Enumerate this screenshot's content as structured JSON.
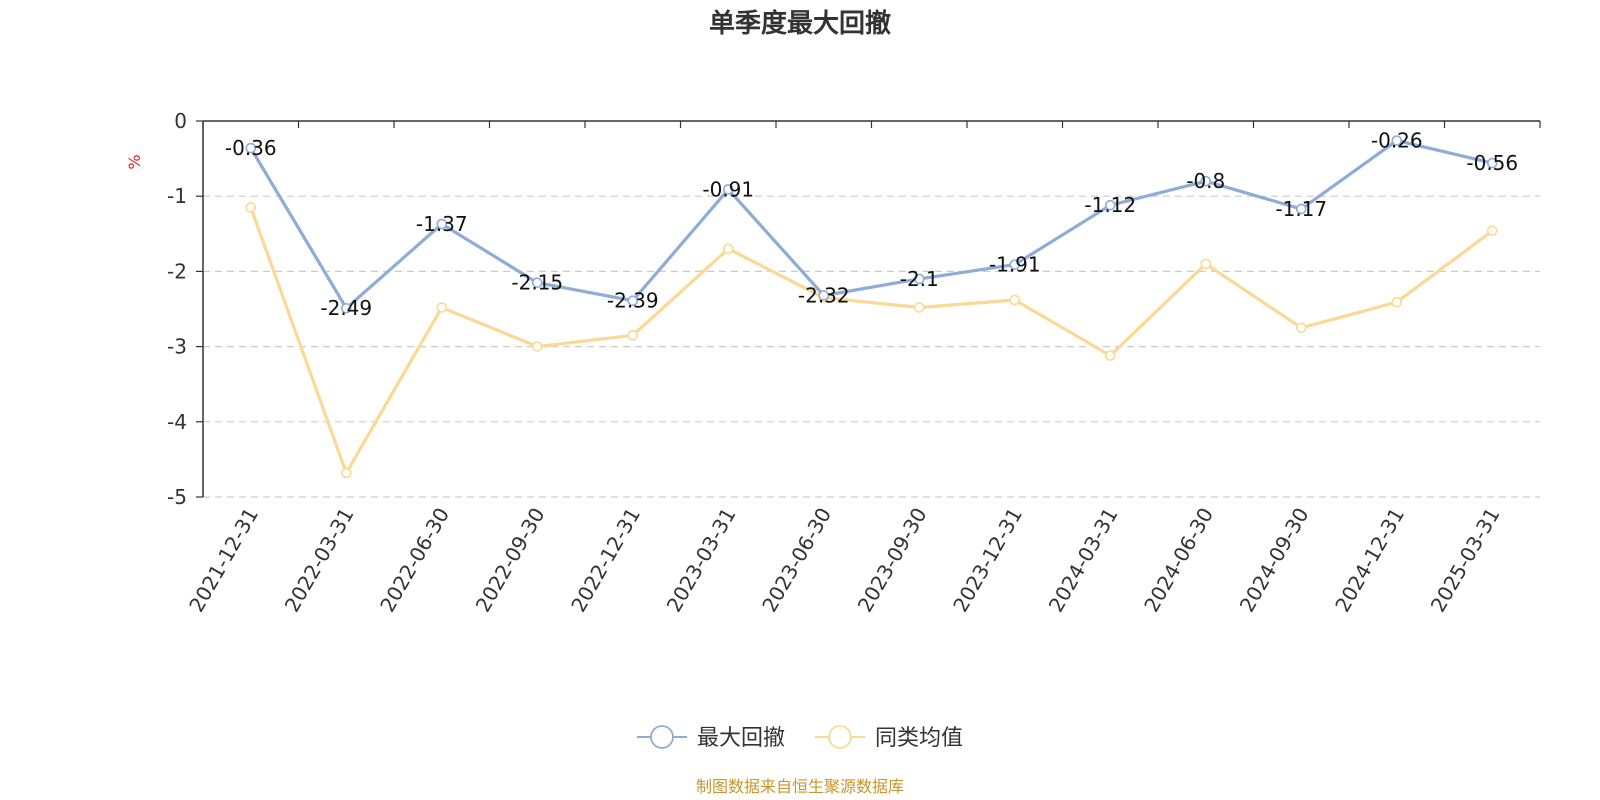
{
  "chart_data": {
    "type": "line",
    "title": "单季度最大回撤",
    "ylabel": "%",
    "xlabel": "",
    "categories": [
      "2021-12-31",
      "2022-03-31",
      "2022-06-30",
      "2022-09-30",
      "2022-12-31",
      "2023-03-31",
      "2023-06-30",
      "2023-09-30",
      "2023-12-31",
      "2024-03-31",
      "2024-06-30",
      "2024-09-30",
      "2024-12-31",
      "2025-03-31"
    ],
    "ylim": [
      -5,
      0
    ],
    "yticks": [
      0,
      -1,
      -2,
      -3,
      -4,
      -5
    ],
    "grid": true,
    "legend_position": "bottom-center",
    "series": [
      {
        "name": "最大回撤",
        "color": "#8fabd8",
        "values": [
          -0.36,
          -2.49,
          -1.37,
          -2.15,
          -2.39,
          -0.91,
          -2.32,
          -2.1,
          -1.91,
          -1.12,
          -0.8,
          -1.17,
          -0.26,
          -0.56
        ],
        "value_labels": [
          "-0.36",
          "-2.49",
          "-1.37",
          "-2.15",
          "-2.39",
          "-0.91",
          "-2.32",
          "-2.1",
          "-1.91",
          "-1.12",
          "-0.8",
          "-1.17",
          "-0.26",
          "-0.56"
        ]
      },
      {
        "name": "同类均值",
        "color": "#fbd994",
        "values": [
          -1.15,
          -4.68,
          -2.48,
          -3.0,
          -2.85,
          -1.7,
          -2.35,
          -2.48,
          -2.38,
          -3.12,
          -1.9,
          -2.75,
          -2.41,
          -1.46
        ]
      }
    ]
  },
  "source_text": "制图数据来自恒生聚源数据库",
  "colors": {
    "title": "#333333",
    "unit": "#e02020",
    "source": "#c8962b",
    "axis": "#333333",
    "grid": "#cccccc"
  }
}
